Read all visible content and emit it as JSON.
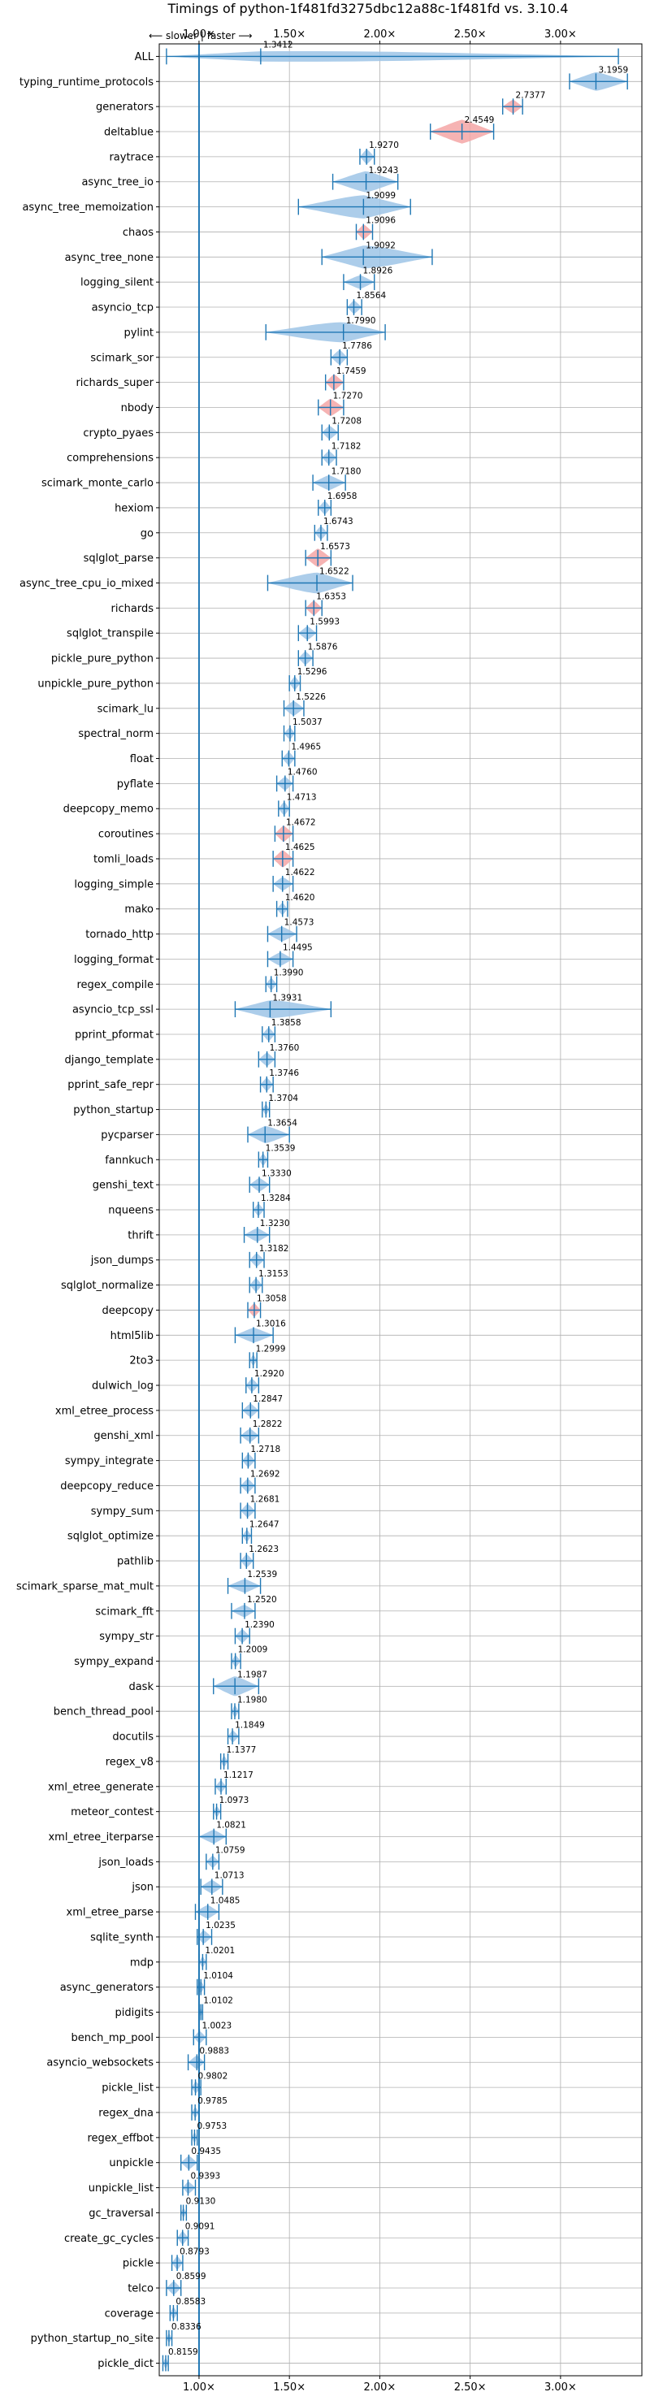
{
  "chart_data": {
    "type": "violin",
    "title": "Timings of python-1f481fd3275dbc12a88c-1f481fd vs. 3.10.4",
    "direction_note": "⟵ slower | faster ⟶",
    "x_ticks": [
      1.0,
      1.5,
      2.0,
      2.5,
      3.0
    ],
    "x_tick_labels": [
      "1.00×",
      "1.50×",
      "2.00×",
      "2.50×",
      "3.00×"
    ],
    "xlim": [
      0.78,
      3.45
    ],
    "reference_line": 1.0,
    "grid": true,
    "colors": {
      "violin_faster": "#9dc4e6",
      "violin_slower": "#f4a6a6",
      "line": "#1f77b4",
      "grid": "#b0b0b0"
    },
    "benchmarks": [
      {
        "name": "ALL",
        "value": 1.3412,
        "min": 0.82,
        "max": 3.32,
        "width": 0.5,
        "sig": true
      },
      {
        "name": "typing_runtime_protocols",
        "value": 3.1959,
        "min": 3.05,
        "max": 3.37,
        "width": 0.75,
        "sig": true
      },
      {
        "name": "generators",
        "value": 2.7377,
        "min": 2.68,
        "max": 2.79,
        "width": 0.55,
        "sig": false
      },
      {
        "name": "deltablue",
        "value": 2.4549,
        "min": 2.28,
        "max": 2.63,
        "width": 0.95,
        "sig": false
      },
      {
        "name": "raytrace",
        "value": 1.927,
        "min": 1.89,
        "max": 1.97,
        "width": 0.6,
        "sig": true
      },
      {
        "name": "async_tree_io",
        "value": 1.9243,
        "min": 1.74,
        "max": 2.1,
        "width": 0.85,
        "sig": true
      },
      {
        "name": "async_tree_memoization",
        "value": 1.9099,
        "min": 1.55,
        "max": 2.17,
        "width": 0.95,
        "sig": true
      },
      {
        "name": "chaos",
        "value": 1.9096,
        "min": 1.87,
        "max": 1.96,
        "width": 0.6,
        "sig": false
      },
      {
        "name": "async_tree_none",
        "value": 1.9092,
        "min": 1.68,
        "max": 2.29,
        "width": 0.95,
        "sig": true
      },
      {
        "name": "logging_silent",
        "value": 1.8926,
        "min": 1.8,
        "max": 1.97,
        "width": 0.55,
        "sig": true
      },
      {
        "name": "asyncio_tcp",
        "value": 1.8564,
        "min": 1.82,
        "max": 1.9,
        "width": 0.55,
        "sig": true
      },
      {
        "name": "pylint",
        "value": 1.799,
        "min": 1.37,
        "max": 2.03,
        "width": 0.85,
        "sig": true
      },
      {
        "name": "scimark_sor",
        "value": 1.7786,
        "min": 1.73,
        "max": 1.82,
        "width": 0.6,
        "sig": true
      },
      {
        "name": "richards_super",
        "value": 1.7459,
        "min": 1.7,
        "max": 1.8,
        "width": 0.65,
        "sig": false
      },
      {
        "name": "nbody",
        "value": 1.727,
        "min": 1.66,
        "max": 1.8,
        "width": 0.7,
        "sig": false
      },
      {
        "name": "crypto_pyaes",
        "value": 1.7208,
        "min": 1.68,
        "max": 1.77,
        "width": 0.55,
        "sig": true
      },
      {
        "name": "comprehensions",
        "value": 1.7182,
        "min": 1.68,
        "max": 1.76,
        "width": 0.55,
        "sig": true
      },
      {
        "name": "scimark_monte_carlo",
        "value": 1.718,
        "min": 1.63,
        "max": 1.81,
        "width": 0.6,
        "sig": true
      },
      {
        "name": "hexiom",
        "value": 1.6958,
        "min": 1.66,
        "max": 1.73,
        "width": 0.55,
        "sig": true
      },
      {
        "name": "go",
        "value": 1.6743,
        "min": 1.64,
        "max": 1.71,
        "width": 0.55,
        "sig": true
      },
      {
        "name": "sqlglot_parse",
        "value": 1.6573,
        "min": 1.59,
        "max": 1.73,
        "width": 0.75,
        "sig": false
      },
      {
        "name": "async_tree_cpu_io_mixed",
        "value": 1.6522,
        "min": 1.38,
        "max": 1.85,
        "width": 0.85,
        "sig": true
      },
      {
        "name": "richards",
        "value": 1.6353,
        "min": 1.59,
        "max": 1.68,
        "width": 0.6,
        "sig": false
      },
      {
        "name": "sqlglot_transpile",
        "value": 1.5993,
        "min": 1.55,
        "max": 1.65,
        "width": 0.55,
        "sig": true
      },
      {
        "name": "pickle_pure_python",
        "value": 1.5876,
        "min": 1.55,
        "max": 1.63,
        "width": 0.55,
        "sig": true
      },
      {
        "name": "unpickle_pure_python",
        "value": 1.5296,
        "min": 1.5,
        "max": 1.56,
        "width": 0.55,
        "sig": true
      },
      {
        "name": "scimark_lu",
        "value": 1.5226,
        "min": 1.47,
        "max": 1.58,
        "width": 0.6,
        "sig": true
      },
      {
        "name": "spectral_norm",
        "value": 1.5037,
        "min": 1.47,
        "max": 1.53,
        "width": 0.5,
        "sig": true
      },
      {
        "name": "float",
        "value": 1.4965,
        "min": 1.46,
        "max": 1.53,
        "width": 0.55,
        "sig": true
      },
      {
        "name": "pyflate",
        "value": 1.476,
        "min": 1.43,
        "max": 1.52,
        "width": 0.55,
        "sig": true
      },
      {
        "name": "deepcopy_memo",
        "value": 1.4713,
        "min": 1.44,
        "max": 1.5,
        "width": 0.55,
        "sig": true
      },
      {
        "name": "coroutines",
        "value": 1.4672,
        "min": 1.42,
        "max": 1.52,
        "width": 0.65,
        "sig": false
      },
      {
        "name": "tomli_loads",
        "value": 1.4625,
        "min": 1.41,
        "max": 1.52,
        "width": 0.7,
        "sig": false
      },
      {
        "name": "logging_simple",
        "value": 1.4622,
        "min": 1.41,
        "max": 1.52,
        "width": 0.55,
        "sig": true
      },
      {
        "name": "mako",
        "value": 1.462,
        "min": 1.43,
        "max": 1.49,
        "width": 0.5,
        "sig": true
      },
      {
        "name": "tornado_http",
        "value": 1.4573,
        "min": 1.38,
        "max": 1.54,
        "width": 0.6,
        "sig": true
      },
      {
        "name": "logging_format",
        "value": 1.4495,
        "min": 1.38,
        "max": 1.52,
        "width": 0.55,
        "sig": true
      },
      {
        "name": "regex_compile",
        "value": 1.399,
        "min": 1.37,
        "max": 1.43,
        "width": 0.5,
        "sig": true
      },
      {
        "name": "asyncio_tcp_ssl",
        "value": 1.3931,
        "min": 1.2,
        "max": 1.73,
        "width": 0.75,
        "sig": true
      },
      {
        "name": "pprint_pformat",
        "value": 1.3858,
        "min": 1.35,
        "max": 1.42,
        "width": 0.55,
        "sig": true
      },
      {
        "name": "django_template",
        "value": 1.376,
        "min": 1.33,
        "max": 1.42,
        "width": 0.55,
        "sig": true
      },
      {
        "name": "pprint_safe_repr",
        "value": 1.3746,
        "min": 1.34,
        "max": 1.41,
        "width": 0.55,
        "sig": true
      },
      {
        "name": "python_startup",
        "value": 1.3704,
        "min": 1.35,
        "max": 1.39,
        "width": 0.45,
        "sig": true
      },
      {
        "name": "pycparser",
        "value": 1.3654,
        "min": 1.27,
        "max": 1.5,
        "width": 0.7,
        "sig": true
      },
      {
        "name": "fannkuch",
        "value": 1.3539,
        "min": 1.33,
        "max": 1.38,
        "width": 0.5,
        "sig": true
      },
      {
        "name": "genshi_text",
        "value": 1.333,
        "min": 1.28,
        "max": 1.39,
        "width": 0.55,
        "sig": true
      },
      {
        "name": "nqueens",
        "value": 1.3284,
        "min": 1.3,
        "max": 1.36,
        "width": 0.5,
        "sig": true
      },
      {
        "name": "thrift",
        "value": 1.323,
        "min": 1.25,
        "max": 1.39,
        "width": 0.55,
        "sig": true
      },
      {
        "name": "json_dumps",
        "value": 1.3182,
        "min": 1.28,
        "max": 1.36,
        "width": 0.55,
        "sig": true
      },
      {
        "name": "sqlglot_normalize",
        "value": 1.3153,
        "min": 1.28,
        "max": 1.35,
        "width": 0.55,
        "sig": true
      },
      {
        "name": "deepcopy",
        "value": 1.3058,
        "min": 1.27,
        "max": 1.34,
        "width": 0.55,
        "sig": false
      },
      {
        "name": "html5lib",
        "value": 1.3016,
        "min": 1.2,
        "max": 1.41,
        "width": 0.6,
        "sig": true
      },
      {
        "name": "2to3",
        "value": 1.2999,
        "min": 1.28,
        "max": 1.32,
        "width": 0.45,
        "sig": true
      },
      {
        "name": "dulwich_log",
        "value": 1.292,
        "min": 1.26,
        "max": 1.33,
        "width": 0.55,
        "sig": true
      },
      {
        "name": "xml_etree_process",
        "value": 1.2847,
        "min": 1.24,
        "max": 1.33,
        "width": 0.55,
        "sig": true
      },
      {
        "name": "genshi_xml",
        "value": 1.2822,
        "min": 1.23,
        "max": 1.33,
        "width": 0.55,
        "sig": true
      },
      {
        "name": "sympy_integrate",
        "value": 1.2718,
        "min": 1.24,
        "max": 1.31,
        "width": 0.55,
        "sig": true
      },
      {
        "name": "deepcopy_reduce",
        "value": 1.2692,
        "min": 1.23,
        "max": 1.31,
        "width": 0.55,
        "sig": true
      },
      {
        "name": "sympy_sum",
        "value": 1.2681,
        "min": 1.23,
        "max": 1.31,
        "width": 0.55,
        "sig": true
      },
      {
        "name": "sqlglot_optimize",
        "value": 1.2647,
        "min": 1.24,
        "max": 1.29,
        "width": 0.5,
        "sig": true
      },
      {
        "name": "pathlib",
        "value": 1.2623,
        "min": 1.23,
        "max": 1.3,
        "width": 0.55,
        "sig": true
      },
      {
        "name": "scimark_sparse_mat_mult",
        "value": 1.2539,
        "min": 1.16,
        "max": 1.34,
        "width": 0.55,
        "sig": true
      },
      {
        "name": "scimark_fft",
        "value": 1.252,
        "min": 1.18,
        "max": 1.31,
        "width": 0.5,
        "sig": true
      },
      {
        "name": "sympy_str",
        "value": 1.239,
        "min": 1.2,
        "max": 1.28,
        "width": 0.55,
        "sig": true
      },
      {
        "name": "sympy_expand",
        "value": 1.2009,
        "min": 1.18,
        "max": 1.23,
        "width": 0.5,
        "sig": true
      },
      {
        "name": "dask",
        "value": 1.1987,
        "min": 1.08,
        "max": 1.33,
        "width": 0.8,
        "sig": true
      },
      {
        "name": "bench_thread_pool",
        "value": 1.198,
        "min": 1.18,
        "max": 1.22,
        "width": 0.5,
        "sig": true
      },
      {
        "name": "docutils",
        "value": 1.1849,
        "min": 1.16,
        "max": 1.22,
        "width": 0.5,
        "sig": true
      },
      {
        "name": "regex_v8",
        "value": 1.1377,
        "min": 1.12,
        "max": 1.16,
        "width": 0.45,
        "sig": true
      },
      {
        "name": "xml_etree_generate",
        "value": 1.1217,
        "min": 1.09,
        "max": 1.15,
        "width": 0.5,
        "sig": true
      },
      {
        "name": "meteor_contest",
        "value": 1.0973,
        "min": 1.08,
        "max": 1.12,
        "width": 0.45,
        "sig": true
      },
      {
        "name": "xml_etree_iterparse",
        "value": 1.0821,
        "min": 1.0,
        "max": 1.15,
        "width": 0.55,
        "sig": true
      },
      {
        "name": "json_loads",
        "value": 1.0759,
        "min": 1.04,
        "max": 1.11,
        "width": 0.5,
        "sig": true
      },
      {
        "name": "json",
        "value": 1.0713,
        "min": 1.01,
        "max": 1.13,
        "width": 0.55,
        "sig": true
      },
      {
        "name": "xml_etree_parse",
        "value": 1.0485,
        "min": 0.98,
        "max": 1.11,
        "width": 0.55,
        "sig": true
      },
      {
        "name": "sqlite_synth",
        "value": 1.0235,
        "min": 0.99,
        "max": 1.07,
        "width": 0.55,
        "sig": true
      },
      {
        "name": "mdp",
        "value": 1.0201,
        "min": 1.0,
        "max": 1.04,
        "width": 0.45,
        "sig": true
      },
      {
        "name": "async_generators",
        "value": 1.0104,
        "min": 0.99,
        "max": 1.03,
        "width": 0.5,
        "sig": true
      },
      {
        "name": "pidigits",
        "value": 1.0102,
        "min": 1.0,
        "max": 1.02,
        "width": 0.4,
        "sig": true
      },
      {
        "name": "bench_mp_pool",
        "value": 1.0023,
        "min": 0.97,
        "max": 1.04,
        "width": 0.5,
        "sig": true
      },
      {
        "name": "asyncio_websockets",
        "value": 0.9883,
        "min": 0.94,
        "max": 1.03,
        "width": 0.55,
        "sig": true
      },
      {
        "name": "pickle_list",
        "value": 0.9802,
        "min": 0.96,
        "max": 1.01,
        "width": 0.5,
        "sig": true
      },
      {
        "name": "regex_dna",
        "value": 0.9785,
        "min": 0.96,
        "max": 1.0,
        "width": 0.45,
        "sig": true
      },
      {
        "name": "regex_effbot",
        "value": 0.9753,
        "min": 0.96,
        "max": 0.99,
        "width": 0.45,
        "sig": true
      },
      {
        "name": "unpickle",
        "value": 0.9435,
        "min": 0.9,
        "max": 0.99,
        "width": 0.55,
        "sig": true
      },
      {
        "name": "unpickle_list",
        "value": 0.9393,
        "min": 0.91,
        "max": 0.98,
        "width": 0.5,
        "sig": true
      },
      {
        "name": "gc_traversal",
        "value": 0.913,
        "min": 0.9,
        "max": 0.93,
        "width": 0.4,
        "sig": true
      },
      {
        "name": "create_gc_cycles",
        "value": 0.9091,
        "min": 0.88,
        "max": 0.94,
        "width": 0.55,
        "sig": true
      },
      {
        "name": "pickle",
        "value": 0.8793,
        "min": 0.85,
        "max": 0.91,
        "width": 0.55,
        "sig": true
      },
      {
        "name": "telco",
        "value": 0.8599,
        "min": 0.82,
        "max": 0.9,
        "width": 0.55,
        "sig": true
      },
      {
        "name": "coverage",
        "value": 0.8583,
        "min": 0.84,
        "max": 0.88,
        "width": 0.5,
        "sig": true
      },
      {
        "name": "python_startup_no_site",
        "value": 0.8336,
        "min": 0.82,
        "max": 0.85,
        "width": 0.4,
        "sig": true
      },
      {
        "name": "pickle_dict",
        "value": 0.8159,
        "min": 0.8,
        "max": 0.83,
        "width": 0.45,
        "sig": true
      }
    ]
  }
}
